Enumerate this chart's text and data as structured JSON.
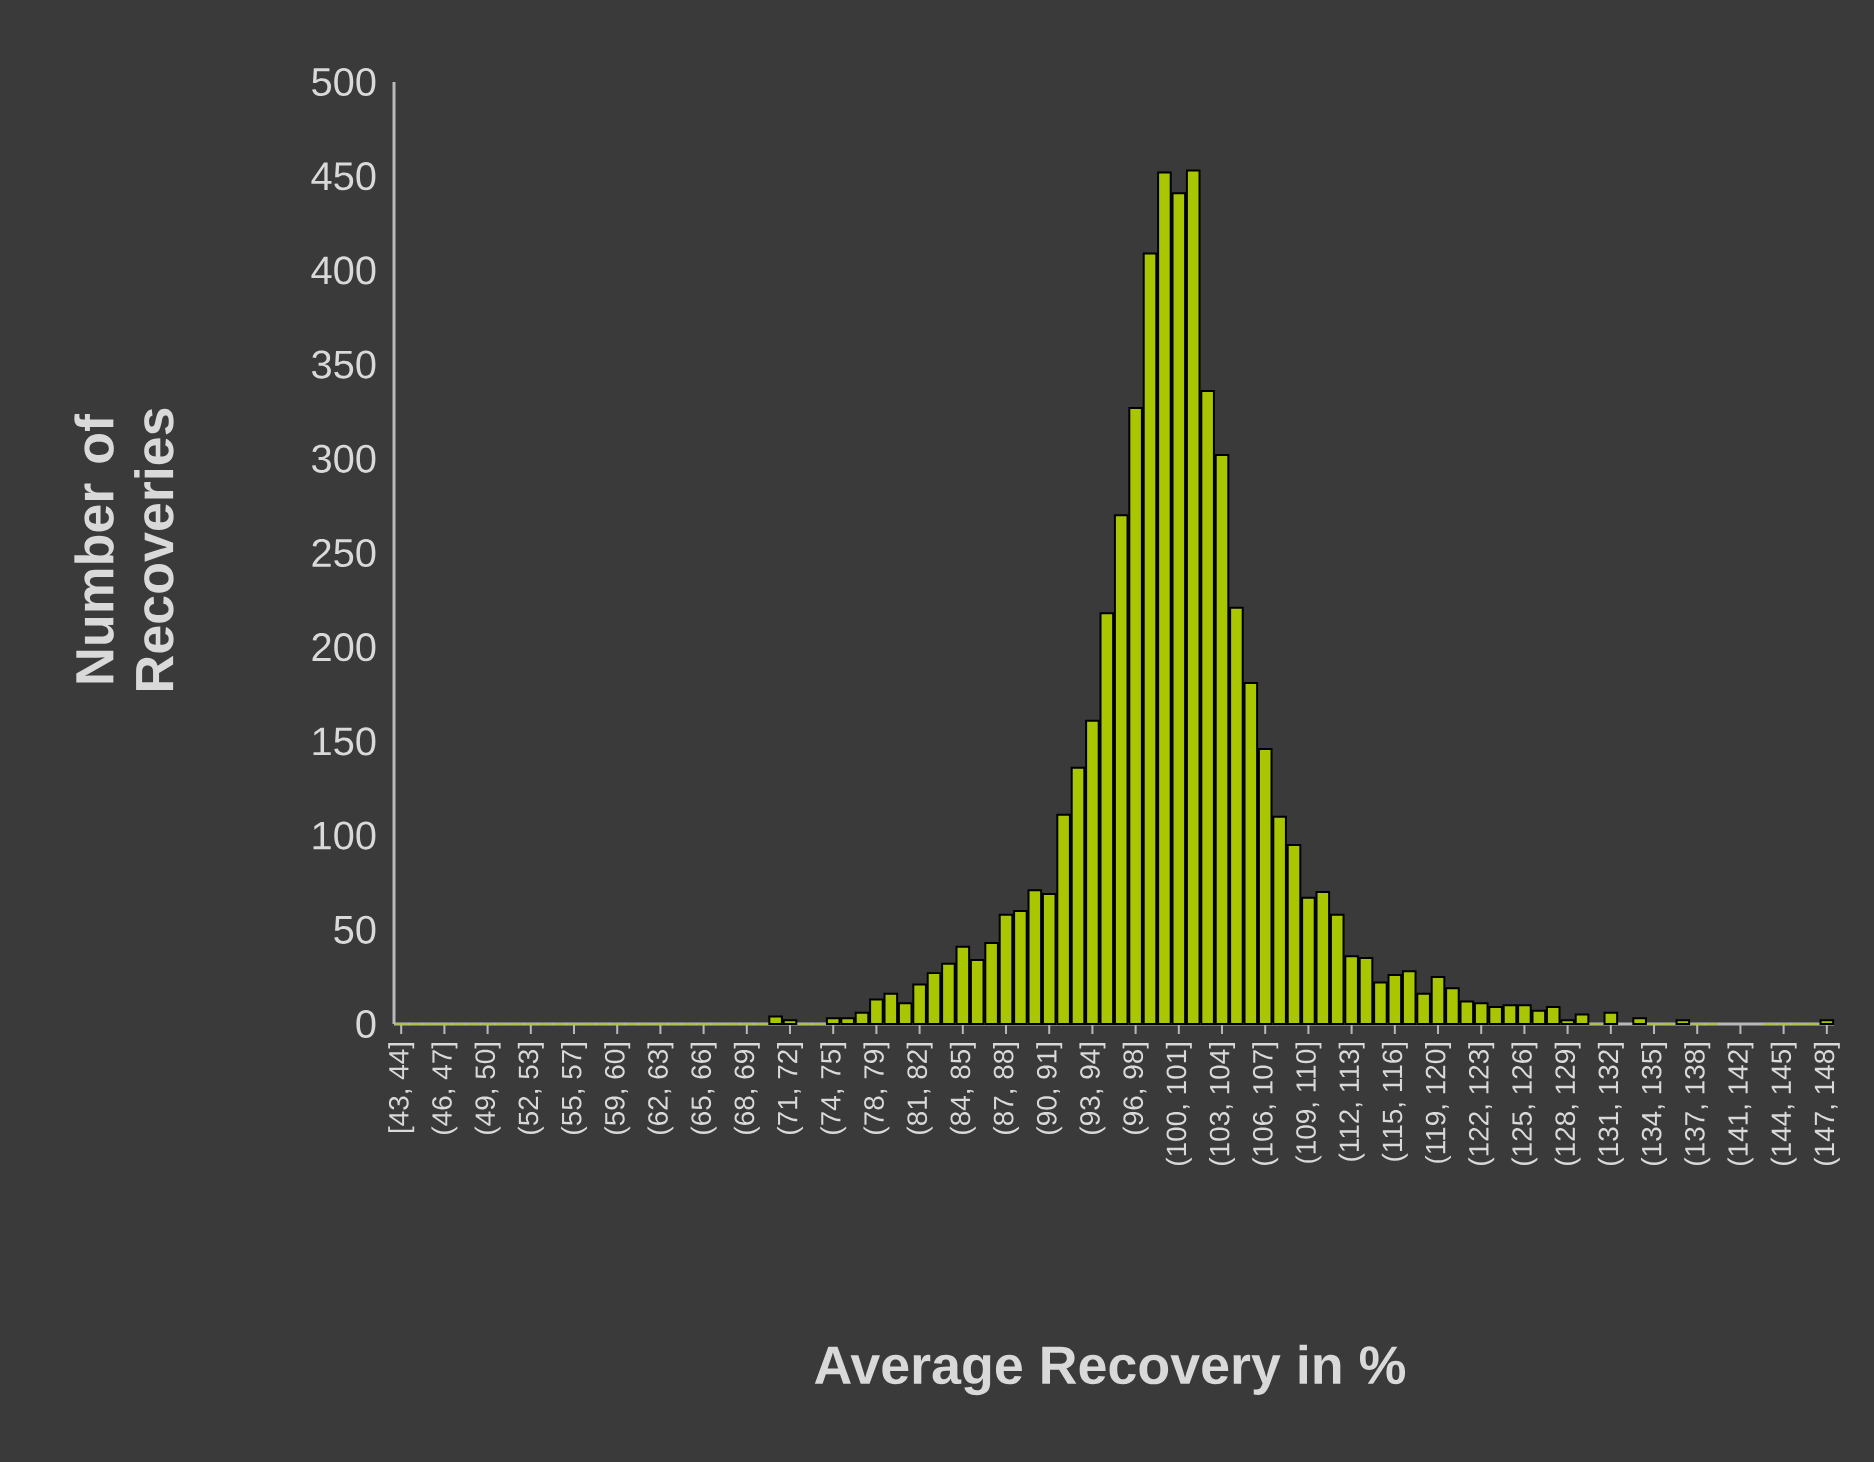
{
  "chart_data": {
    "type": "bar",
    "xlabel": "Average Recovery in %",
    "ylabel": "Number of Recoveries",
    "categories": [
      "[43, 44]",
      null,
      null,
      "(46, 47]",
      null,
      null,
      "(49, 50]",
      null,
      null,
      "(52, 53]",
      null,
      null,
      "(55, 57]",
      null,
      null,
      "(59, 60]",
      null,
      null,
      "(62, 63]",
      null,
      null,
      "(65, 66]",
      null,
      null,
      "(68, 69]",
      null,
      null,
      "(71, 72]",
      null,
      null,
      "(74, 75]",
      null,
      null,
      "(78, 79]",
      null,
      null,
      "(81, 82]",
      null,
      null,
      "(84, 85]",
      null,
      null,
      "(87, 88]",
      null,
      null,
      "(90, 91]",
      null,
      null,
      "(93, 94]",
      null,
      null,
      "(96, 98]",
      null,
      null,
      "(100, 101]",
      null,
      null,
      "(103, 104]",
      null,
      null,
      "(106, 107]",
      null,
      null,
      "(109, 110]",
      null,
      null,
      "(112, 113]",
      null,
      null,
      "(115, 116]",
      null,
      null,
      "(119, 120]",
      null,
      null,
      "(122, 123]",
      null,
      null,
      "(125, 126]",
      null,
      null,
      "(128, 129]",
      null,
      null,
      "(131, 132]",
      null,
      null,
      "(134, 135]",
      null,
      null,
      "(137, 138]",
      null,
      null,
      "(141, 142]",
      null,
      null,
      "(144, 145]",
      null,
      null,
      "(147, 148]"
    ],
    "values": [
      0,
      0,
      0,
      0,
      0,
      0,
      0,
      0,
      0,
      0,
      0,
      0,
      0,
      0,
      0,
      0,
      0,
      0,
      0,
      0,
      0,
      0,
      0,
      0,
      0,
      0,
      4,
      2,
      0,
      0,
      3,
      3,
      6,
      13,
      16,
      11,
      21,
      27,
      32,
      41,
      34,
      43,
      58,
      60,
      71,
      69,
      111,
      136,
      161,
      218,
      270,
      327,
      409,
      452,
      441,
      453,
      336,
      302,
      221,
      181,
      146,
      110,
      95,
      67,
      70,
      58,
      36,
      35,
      22,
      26,
      28,
      16,
      25,
      19,
      12,
      11,
      9,
      10,
      10,
      7,
      9,
      2,
      5,
      0,
      6,
      null,
      3,
      0,
      0,
      2,
      0,
      0,
      null,
      null,
      null,
      0,
      0,
      0,
      0,
      2
    ],
    "color": "#a9c600",
    "ylim": [
      0,
      500
    ],
    "yticks": [
      0,
      50,
      100,
      150,
      200,
      250,
      300,
      350,
      400,
      450,
      500
    ]
  }
}
